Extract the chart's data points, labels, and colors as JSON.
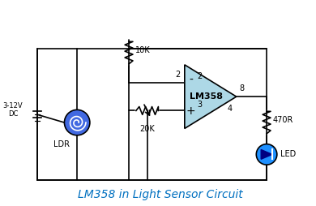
{
  "title": "LM358 in Light Sensor Circuit",
  "title_color": "#0070C0",
  "title_fontsize": 10,
  "bg_color": "#ffffff",
  "line_color": "#000000",
  "op_amp_fill": "#ADD8E6",
  "op_amp_label": "LM358",
  "ldr_fill": "#4169E1",
  "led_fill": "#1E90FF",
  "label_10k": "10K",
  "label_20k": "20K",
  "label_470r": "470R",
  "label_ldr": "LDR",
  "label_led": "LED",
  "label_vcc": "3-12V\nDC",
  "pin2": "2",
  "pin3": "3",
  "pin4": "4",
  "pin8": "8"
}
